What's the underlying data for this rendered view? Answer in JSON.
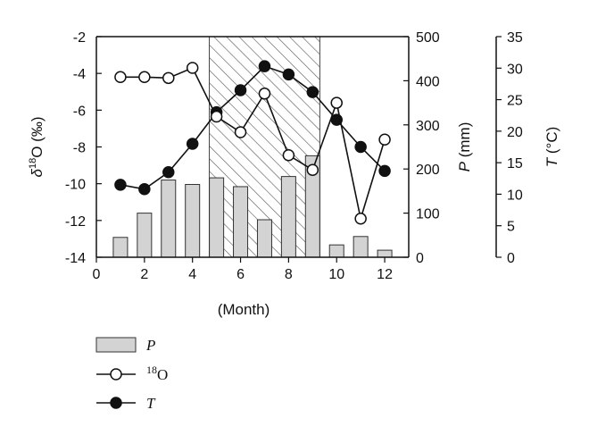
{
  "chart_data": {
    "type": "bar",
    "x": [
      1,
      2,
      3,
      4,
      5,
      6,
      7,
      8,
      9,
      10,
      11,
      12
    ],
    "xlim": [
      0,
      13
    ],
    "xticks": [
      "0",
      "2",
      "4",
      "6",
      "8",
      "10",
      "12"
    ],
    "xtick_values": [
      0,
      2,
      4,
      6,
      8,
      10,
      12
    ],
    "xlabel": "(Month)",
    "axes": {
      "left": {
        "label_prefix": "δ",
        "label_sup": "18",
        "label_suffix": "O (‰)",
        "range": [
          -14,
          -2
        ],
        "ticks": [
          "-2",
          "-4",
          "-6",
          "-8",
          "-10",
          "-12",
          "-14"
        ],
        "tick_values": [
          -2,
          -4,
          -6,
          -8,
          -10,
          -12,
          -14
        ]
      },
      "right1": {
        "label_var": "P",
        "label_unit": " (mm)",
        "range": [
          0,
          500
        ],
        "ticks": [
          "500",
          "400",
          "300",
          "200",
          "100",
          "0"
        ],
        "tick_values": [
          500,
          400,
          300,
          200,
          100,
          0
        ]
      },
      "right2": {
        "label_var": "T",
        "label_unit": " (°C)",
        "range": [
          0,
          35
        ],
        "ticks": [
          "35",
          "30",
          "25",
          "20",
          "15",
          "10",
          "5",
          "0"
        ],
        "tick_values": [
          35,
          30,
          25,
          20,
          15,
          10,
          5,
          0
        ]
      }
    },
    "shaded_region": {
      "x_start": 4.7,
      "x_end": 9.3,
      "pattern": "diagonal-hatch"
    },
    "series": [
      {
        "name": "P",
        "type": "bar",
        "axis": "right1",
        "color": "#d3d3d3",
        "values": [
          45,
          100,
          175,
          165,
          180,
          160,
          85,
          183,
          230,
          28,
          47,
          16
        ]
      },
      {
        "name": "18O",
        "type": "line",
        "axis": "left",
        "marker": "open-circle",
        "values": [
          -4.2,
          -4.2,
          -4.25,
          -3.7,
          -6.35,
          -7.2,
          -5.1,
          -8.45,
          -9.25,
          -5.6,
          -11.9,
          -7.6
        ]
      },
      {
        "name": "T",
        "type": "line",
        "axis": "right2",
        "marker": "filled-circle",
        "values": [
          11.5,
          10.8,
          13.5,
          18.0,
          23.0,
          26.5,
          30.3,
          29.0,
          26.2,
          21.8,
          17.5,
          13.7
        ]
      }
    ],
    "legend": [
      {
        "label": "P",
        "italic": true,
        "symbol": "bar"
      },
      {
        "label_sup": "18",
        "label": "O",
        "italic": false,
        "symbol": "open-circle"
      },
      {
        "label": "T",
        "italic": true,
        "symbol": "filled-circle"
      }
    ],
    "legend_position": "bottom-left"
  }
}
